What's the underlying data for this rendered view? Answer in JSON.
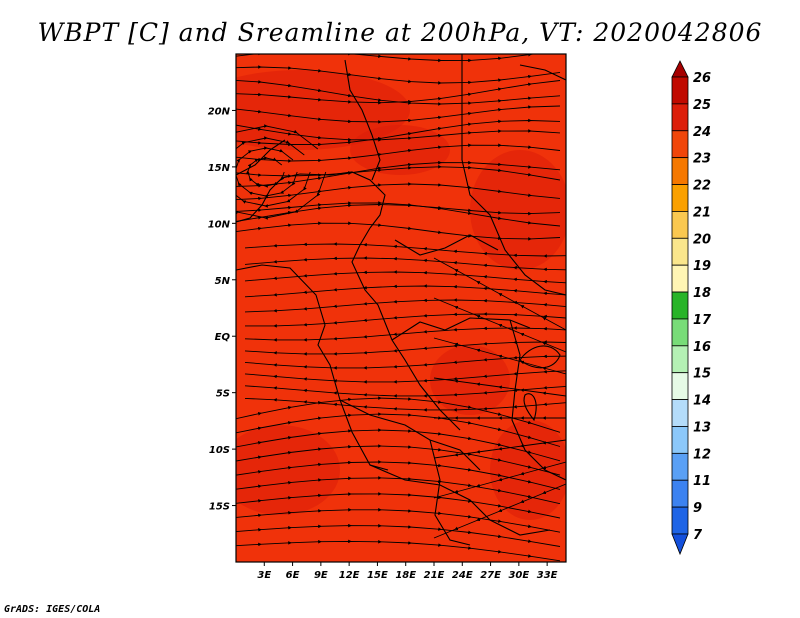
{
  "title": "WBPT [C] and Sreamline at 200hPa, VT: 2020042806",
  "credit": "GrADS: IGES/COLA",
  "map": {
    "lat_range": [
      -20,
      25
    ],
    "lon_range": [
      0,
      35
    ],
    "lat_ticks": [
      {
        "value": 20,
        "label": "20N"
      },
      {
        "value": 15,
        "label": "15N"
      },
      {
        "value": 10,
        "label": "10N"
      },
      {
        "value": 5,
        "label": "5N"
      },
      {
        "value": 0,
        "label": "EQ"
      },
      {
        "value": -5,
        "label": "5S"
      },
      {
        "value": -10,
        "label": "10S"
      },
      {
        "value": -15,
        "label": "15S"
      }
    ],
    "lon_ticks": [
      {
        "value": 3,
        "label": "3E"
      },
      {
        "value": 6,
        "label": "6E"
      },
      {
        "value": 9,
        "label": "9E"
      },
      {
        "value": 12,
        "label": "12E"
      },
      {
        "value": 15,
        "label": "15E"
      },
      {
        "value": 18,
        "label": "18E"
      },
      {
        "value": 21,
        "label": "21E"
      },
      {
        "value": 24,
        "label": "24E"
      },
      {
        "value": 27,
        "label": "27E"
      },
      {
        "value": 30,
        "label": "30E"
      },
      {
        "value": 33,
        "label": "33E"
      }
    ],
    "field_color_dominant": "#f0320a",
    "field_color_high": "#dc1e0a",
    "streamline_color": "#000000"
  },
  "colorbar": {
    "levels": [
      {
        "label": "26",
        "color": "#a50000"
      },
      {
        "label": "25",
        "color": "#c00a00"
      },
      {
        "label": "24",
        "color": "#dc1e0a"
      },
      {
        "label": "23",
        "color": "#f0460a"
      },
      {
        "label": "22",
        "color": "#f57800"
      },
      {
        "label": "21",
        "color": "#faa000"
      },
      {
        "label": "20",
        "color": "#fac850"
      },
      {
        "label": "19",
        "color": "#fae68c"
      },
      {
        "label": "18",
        "color": "#fff5b4"
      },
      {
        "label": "17",
        "color": "#28b428"
      },
      {
        "label": "16",
        "color": "#78dc78"
      },
      {
        "label": "15",
        "color": "#b4f0b4"
      },
      {
        "label": "14",
        "color": "#e6fae6"
      },
      {
        "label": "13",
        "color": "#b4dcfa"
      },
      {
        "label": "12",
        "color": "#8cc8fa"
      },
      {
        "label": "11",
        "color": "#5aa0f5"
      },
      {
        "label": "9",
        "color": "#3c82f0"
      },
      {
        "label": "7",
        "color": "#1e64e6"
      }
    ],
    "bottom_color": "#1450dc"
  }
}
